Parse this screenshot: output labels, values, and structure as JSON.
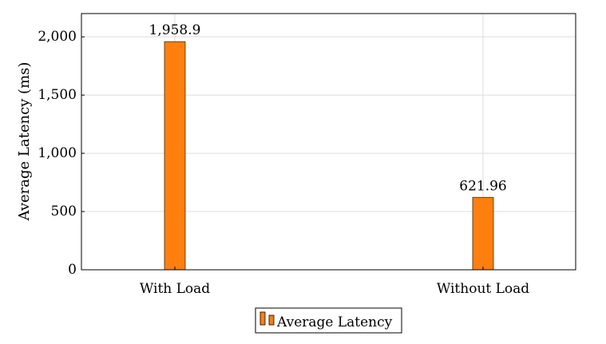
{
  "chart_data": {
    "type": "bar",
    "categories": [
      "With Load",
      "Without Load"
    ],
    "series": [
      {
        "name": "Average Latency",
        "values": [
          1958.9,
          621.96
        ],
        "color": "#ff7f0e"
      }
    ],
    "value_labels": [
      "1,958.9",
      "621.96"
    ],
    "ylabel": "Average Latency (ms)",
    "xlabel": "",
    "ylim": [
      0,
      2200
    ],
    "yticks": [
      0,
      500,
      1000,
      1500,
      2000
    ],
    "ytick_labels": [
      "0",
      "500",
      "1,000",
      "1,500",
      "2,000"
    ],
    "grid": true,
    "legend_position": "bottom-center",
    "bar_color": "#ff7f0e"
  }
}
